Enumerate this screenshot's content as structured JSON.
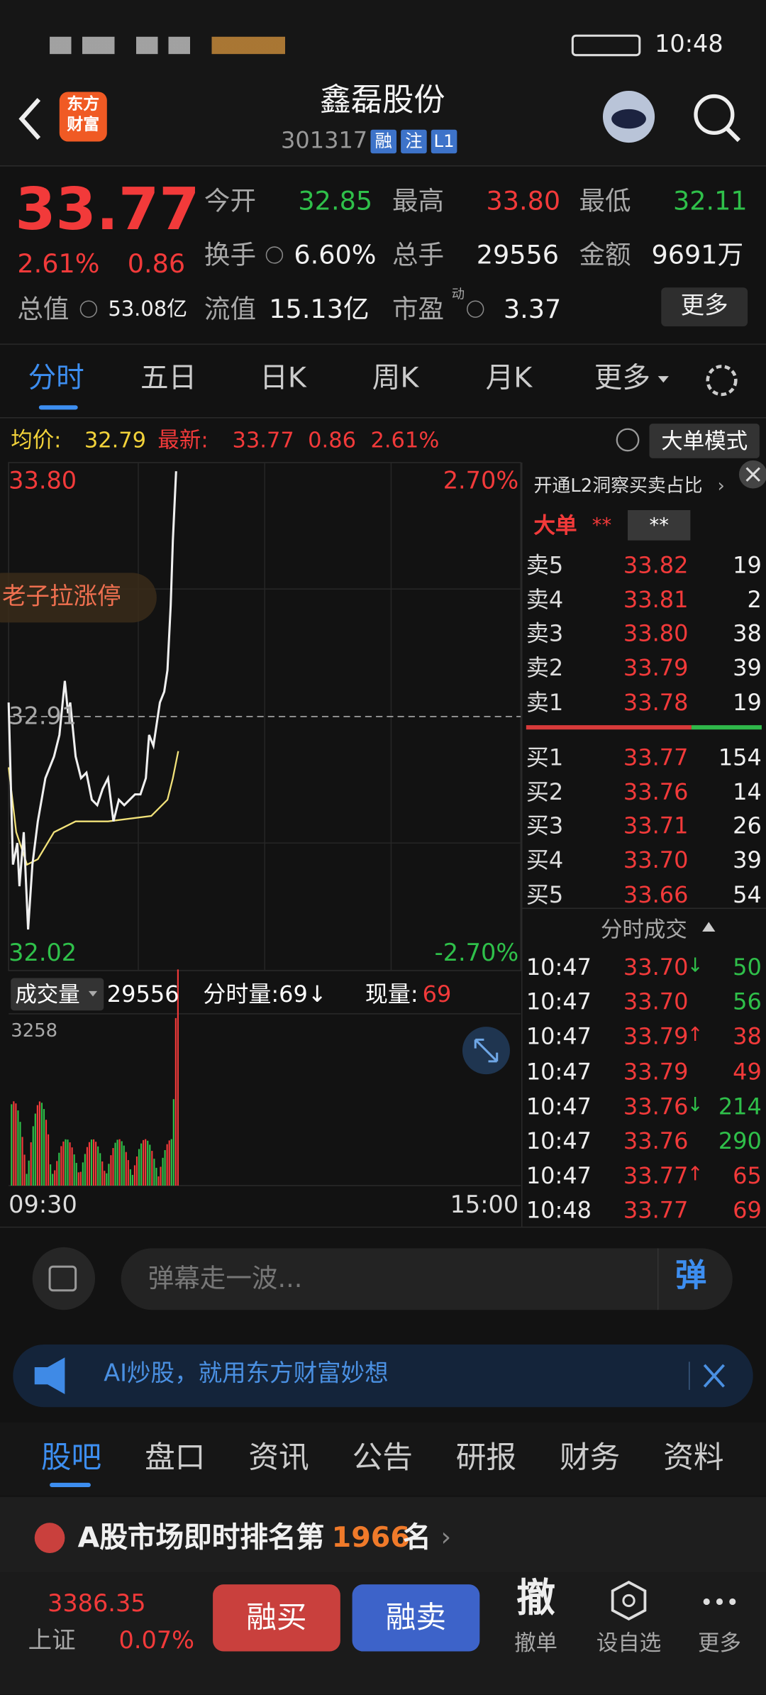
{
  "status_bar": {
    "time": "10:48"
  },
  "header": {
    "logo": [
      "东方",
      "财富"
    ],
    "title": "鑫磊股份",
    "code": "301317",
    "badges": [
      "融",
      "注",
      "L1"
    ]
  },
  "quote": {
    "price": "33.77",
    "change_pct": "2.61%",
    "change": "0.86",
    "stats": [
      {
        "label": "今开",
        "value": "32.85",
        "color": "green"
      },
      {
        "label": "最高",
        "value": "33.80",
        "color": "red"
      },
      {
        "label": "最低",
        "value": "32.11",
        "color": "green"
      },
      {
        "label": "换手",
        "value": "6.60%",
        "color": "white"
      },
      {
        "label": "总手",
        "value": "29556",
        "color": "white"
      },
      {
        "label": "金额",
        "value": "9691万",
        "color": "white"
      },
      {
        "label": "流值",
        "value": "15.13亿",
        "color": "white"
      },
      {
        "label": "市盈",
        "value": "3.37",
        "color": "white"
      }
    ],
    "pe_superscript": "动",
    "market_cap": {
      "label": "总值",
      "value": "53.08亿"
    },
    "more_button": "更多"
  },
  "tabs": {
    "items": [
      "分时",
      "五日",
      "日K",
      "周K",
      "月K",
      "更多"
    ],
    "active": 0
  },
  "info": {
    "avg_label": "均价:",
    "avg": "32.79",
    "latest_label": "最新:",
    "latest": "33.77",
    "change": "0.86",
    "pct": "2.61%",
    "mode_button": "大单模式"
  },
  "chart": {
    "high": "33.80",
    "high_pct": "2.70%",
    "pre_close": "32.91",
    "low": "32.02",
    "low_pct": "-2.70%",
    "promo": "老子拉涨停"
  },
  "volume": {
    "label": "成交量",
    "total": "29556",
    "minute": "分时量:69↓",
    "current_label": "现量:",
    "current": "69",
    "max": "3258",
    "start_time": "09:30",
    "end_time": "15:00"
  },
  "order_book": {
    "l2_promo": "开通L2洞察买卖占比",
    "big_label": "大单",
    "big_value": "**",
    "big_value2": "**",
    "sell": [
      {
        "label": "卖5",
        "price": "33.82",
        "volume": "19"
      },
      {
        "label": "卖4",
        "price": "33.81",
        "volume": "2"
      },
      {
        "label": "卖3",
        "price": "33.80",
        "volume": "38"
      },
      {
        "label": "卖2",
        "price": "33.79",
        "volume": "39"
      },
      {
        "label": "卖1",
        "price": "33.78",
        "volume": "19"
      }
    ],
    "buy": [
      {
        "label": "买1",
        "price": "33.77",
        "volume": "154"
      },
      {
        "label": "买2",
        "price": "33.76",
        "volume": "14"
      },
      {
        "label": "买3",
        "price": "33.71",
        "volume": "26"
      },
      {
        "label": "买4",
        "price": "33.70",
        "volume": "39"
      },
      {
        "label": "买5",
        "price": "33.66",
        "volume": "54"
      }
    ]
  },
  "trades": {
    "title": "分时成交",
    "rows": [
      {
        "time": "10:47",
        "price": "33.70",
        "dir": "↓",
        "volume": "50",
        "side": "sell"
      },
      {
        "time": "10:47",
        "price": "33.70",
        "volume": "56",
        "side": "sell"
      },
      {
        "time": "10:47",
        "price": "33.79",
        "dir": "↑",
        "volume": "38",
        "side": "buy"
      },
      {
        "time": "10:47",
        "price": "33.79",
        "volume": "49",
        "side": "buy"
      },
      {
        "time": "10:47",
        "price": "33.76",
        "dir": "↓",
        "volume": "214",
        "side": "sell"
      },
      {
        "time": "10:47",
        "price": "33.76",
        "volume": "290",
        "side": "sell"
      },
      {
        "time": "10:47",
        "price": "33.77",
        "dir": "↑",
        "volume": "65",
        "side": "buy"
      },
      {
        "time": "10:48",
        "price": "33.77",
        "volume": "69",
        "side": "buy"
      }
    ]
  },
  "comment": {
    "placeholder": "弹幕走一波...",
    "button": "弹"
  },
  "ai_banner": "AI炒股，就用东方财富妙想",
  "bottom_tabs": {
    "items": [
      "股吧",
      "盘口",
      "资讯",
      "公告",
      "研报",
      "财务",
      "资料"
    ],
    "active": 0
  },
  "ranking": {
    "prefix": "A股市场即时排名第",
    "rank": "1966",
    "suffix": "名"
  },
  "bottom_bar": {
    "index_value": "3386.35",
    "index_name": "上证",
    "index_pct": "0.07%",
    "buy": "融买",
    "sell": "融卖",
    "actions": [
      {
        "icon": "撤",
        "label": "撤单"
      },
      {
        "label": "设自选"
      },
      {
        "label": "更多"
      }
    ]
  }
}
